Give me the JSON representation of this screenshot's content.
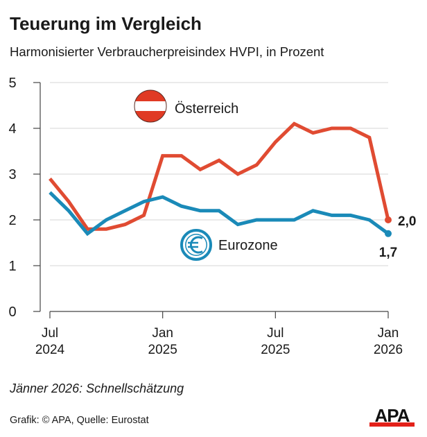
{
  "header": {
    "title": "Teuerung im Vergleich",
    "subtitle": "Harmonisierter Verbraucherpreisindex HVPI, in Prozent"
  },
  "footer": {
    "note": "Jänner 2026: Schnellschätzung",
    "source": "Grafik: © APA, Quelle: Eurostat",
    "logo_text": "APA",
    "logo_bar_color": "#e32119"
  },
  "chart_data": {
    "type": "line",
    "title": "Teuerung im Vergleich",
    "subtitle": "Harmonisierter Verbraucherpreisindex HVPI, in Prozent",
    "xlabel": "",
    "ylabel": "",
    "ylim": [
      0,
      5
    ],
    "yticks": [
      "0",
      "1",
      "2",
      "3",
      "4",
      "5"
    ],
    "grid": true,
    "x": [
      "2024-07",
      "2024-08",
      "2024-09",
      "2024-10",
      "2024-11",
      "2024-12",
      "2025-01",
      "2025-02",
      "2025-03",
      "2025-04",
      "2025-05",
      "2025-06",
      "2025-07",
      "2025-08",
      "2025-09",
      "2025-10",
      "2025-11",
      "2025-12",
      "2026-01"
    ],
    "xticks": [
      {
        "index": 0,
        "month": "Jul",
        "year": "2024"
      },
      {
        "index": 6,
        "month": "Jan",
        "year": "2025"
      },
      {
        "index": 12,
        "month": "Jul",
        "year": "2025"
      },
      {
        "index": 18,
        "month": "Jan",
        "year": "2026"
      }
    ],
    "series": [
      {
        "name": "Österreich",
        "color": "#e04b32",
        "icon": "austria-flag-icon",
        "values": [
          2.9,
          2.4,
          1.8,
          1.8,
          1.9,
          2.1,
          3.4,
          3.4,
          3.1,
          3.3,
          3.0,
          3.2,
          3.7,
          4.1,
          3.9,
          4.0,
          4.0,
          3.8,
          2.0
        ],
        "end_label": "2,0"
      },
      {
        "name": "Eurozone",
        "color": "#1a8ab8",
        "icon": "euro-icon",
        "values": [
          2.6,
          2.2,
          1.7,
          2.0,
          2.2,
          2.4,
          2.5,
          2.3,
          2.2,
          2.2,
          1.9,
          2.0,
          2.0,
          2.0,
          2.2,
          2.1,
          2.1,
          2.0,
          1.7
        ],
        "end_label": "1,7"
      }
    ],
    "legend": "inline"
  }
}
